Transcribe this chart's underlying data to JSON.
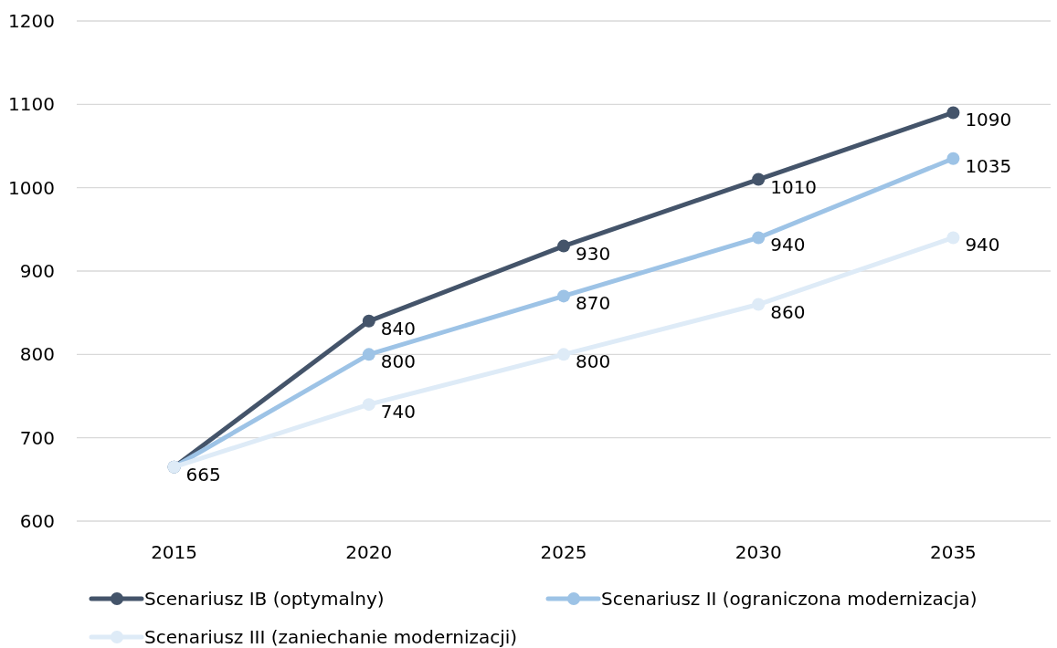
{
  "chart_data": {
    "type": "line",
    "categories": [
      "2015",
      "2020",
      "2025",
      "2030",
      "2035"
    ],
    "series": [
      {
        "name": "Scenariusz IB (optymalny)",
        "color": "#44546a",
        "values": [
          665,
          840,
          930,
          1010,
          1090
        ],
        "value_labels": [
          "665",
          "840",
          "930",
          "1010",
          "1090"
        ]
      },
      {
        "name": "Scenariusz II (ograniczona modernizacja)",
        "color": "#9dc3e6",
        "values": [
          665,
          800,
          870,
          940,
          1035
        ],
        "value_labels": [
          null,
          "800",
          "870",
          "940",
          "1035"
        ]
      },
      {
        "name": "Scenariusz III (zaniechanie modernizacji)",
        "color": "#deebf7",
        "values": [
          665,
          740,
          800,
          860,
          940
        ],
        "value_labels": [
          null,
          "740",
          "800",
          "860",
          "940"
        ]
      }
    ],
    "ylim": [
      600,
      1200
    ],
    "yticks": [
      600,
      700,
      800,
      900,
      1000,
      1100,
      1200
    ],
    "grid": "y",
    "legend": "bottom",
    "marker": "circle",
    "line_style": "solid"
  }
}
